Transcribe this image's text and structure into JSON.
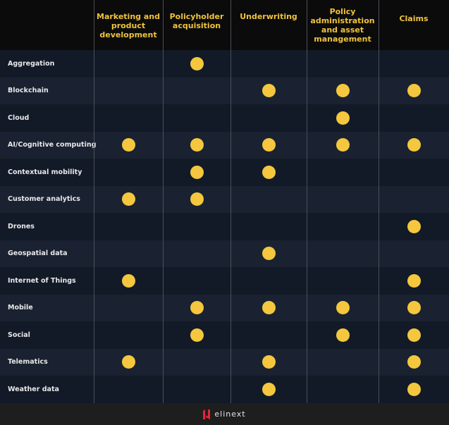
{
  "columns": [
    "Marketing and product development",
    "Policyholder acquisition",
    "Underwriting",
    "Policy administration and asset management",
    "Claims"
  ],
  "rows": [
    {
      "label": "Aggregation",
      "marks": [
        0,
        1,
        0,
        0,
        0
      ]
    },
    {
      "label": "Blockchain",
      "marks": [
        0,
        0,
        1,
        1,
        1
      ]
    },
    {
      "label": "Cloud",
      "marks": [
        0,
        0,
        0,
        1,
        0
      ]
    },
    {
      "label": "AI/Cognitive computing",
      "marks": [
        1,
        1,
        1,
        1,
        1
      ]
    },
    {
      "label": "Contextual mobility",
      "marks": [
        0,
        1,
        1,
        0,
        0
      ]
    },
    {
      "label": "Customer analytics",
      "marks": [
        1,
        1,
        0,
        0,
        0
      ]
    },
    {
      "label": "Drones",
      "marks": [
        0,
        0,
        0,
        0,
        1
      ]
    },
    {
      "label": "Geospatial data",
      "marks": [
        0,
        0,
        1,
        0,
        0
      ]
    },
    {
      "label": "Internet of Things",
      "marks": [
        1,
        0,
        0,
        0,
        1
      ]
    },
    {
      "label": "Mobile",
      "marks": [
        0,
        1,
        1,
        1,
        1
      ]
    },
    {
      "label": "Social",
      "marks": [
        0,
        1,
        0,
        1,
        1
      ]
    },
    {
      "label": "Telematics",
      "marks": [
        1,
        0,
        1,
        0,
        1
      ]
    },
    {
      "label": "Weather data",
      "marks": [
        0,
        0,
        1,
        0,
        1
      ]
    }
  ],
  "colors": {
    "accent": "#f4c73e",
    "header_text": "#f0c33c",
    "logo": "#e3263b"
  },
  "footer": {
    "logo_text": "elinext"
  }
}
